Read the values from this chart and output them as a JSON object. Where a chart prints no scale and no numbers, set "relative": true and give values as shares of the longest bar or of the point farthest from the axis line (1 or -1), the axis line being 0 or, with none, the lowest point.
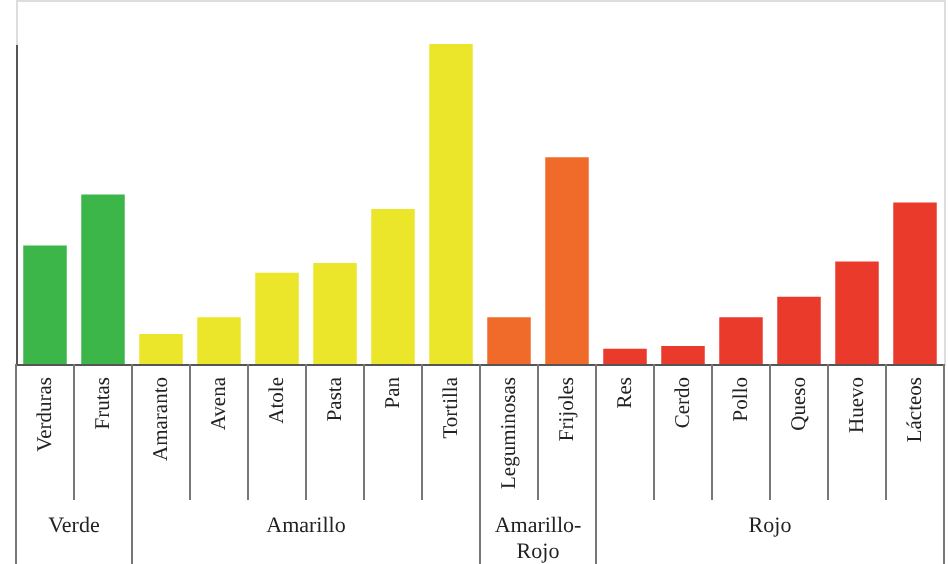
{
  "chart_data": {
    "type": "bar",
    "relative": true,
    "categories": [
      "Verduras",
      "Frutas",
      "Amaranto",
      "Avena",
      "Atole",
      "Pasta",
      "Pan",
      "Tortilla",
      "Leguminosas",
      "Frijoles",
      "Res",
      "Cerdo",
      "Pollo",
      "Queso",
      "Huevo",
      "Lácteos"
    ],
    "values": [
      0.37,
      0.53,
      0.094,
      0.146,
      0.285,
      0.316,
      0.484,
      1,
      0.146,
      0.646,
      0.048,
      0.056,
      0.146,
      0.21,
      0.32,
      0.505
    ],
    "colors": [
      "#3cb549",
      "#3cb549",
      "#ebe62a",
      "#ebe62a",
      "#ebe62a",
      "#ebe62a",
      "#ebe62a",
      "#ebe62a",
      "#f06a2a",
      "#f06a2a",
      "#ea3a2c",
      "#ea3a2c",
      "#ea3a2c",
      "#ea3a2c",
      "#ea3a2c",
      "#ea3a2c"
    ],
    "annotations": [
      "Verde",
      "Amarillo",
      "Amarillo-Rojo",
      "Rojo"
    ]
  }
}
